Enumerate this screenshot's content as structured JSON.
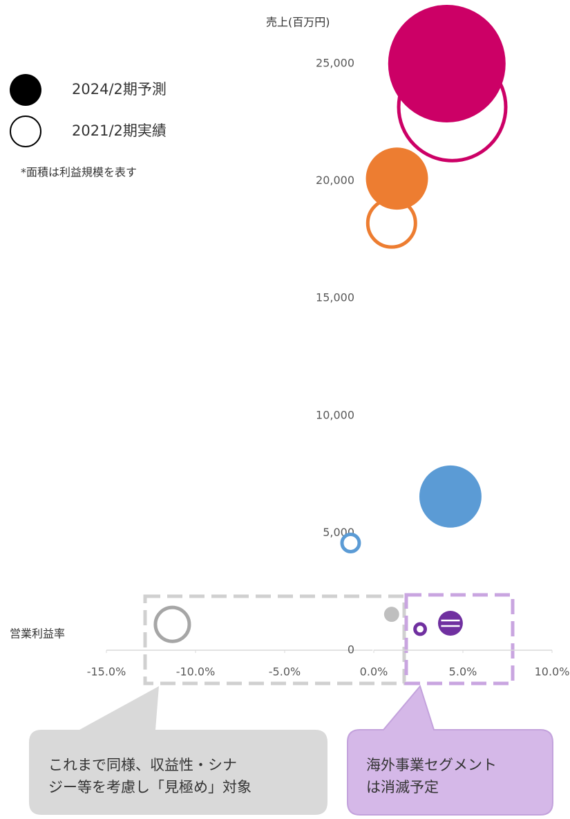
{
  "chart_data": {
    "type": "bubble",
    "y_label": "売上(百万円)",
    "x_label": "営業利益率",
    "note": "*面積は利益規模を表す",
    "xlim": [
      -15,
      10
    ],
    "xticks": [
      {
        "value": -15,
        "label": "-15.0%"
      },
      {
        "value": -10,
        "label": "-10.0%"
      },
      {
        "value": -5,
        "label": "-5.0%"
      },
      {
        "value": 0,
        "label": "0.0%"
      },
      {
        "value": 5,
        "label": "5.0%"
      },
      {
        "value": 10,
        "label": "10.0%"
      }
    ],
    "ylim": [
      0,
      25000
    ],
    "yticks": [
      0,
      {
        "value": 5000,
        "label": "5,000"
      },
      {
        "value": 10000,
        "label": "10,000"
      },
      {
        "value": 15000,
        "label": "15,000"
      },
      {
        "value": 20000,
        "label": "20,000"
      },
      {
        "value": 25000,
        "label": "25,000"
      }
    ],
    "series": [
      {
        "name": "2024/2期予測",
        "filled": true,
        "color": "#000000",
        "x": [
          4.1,
          1.3,
          4.3,
          1.0,
          4.3
        ],
        "values": [
          25000,
          20100,
          6550,
          1530,
          1150
        ],
        "sizes": [
          1029,
          288,
          288,
          17,
          46
        ],
        "colors": [
          "#cc0066",
          "#ed7d31",
          "#5b9bd5",
          "#bfbfbf",
          "#7030a0"
        ]
      },
      {
        "name": "2021/2期実績",
        "filled": false,
        "color": "#000000",
        "x": [
          4.4,
          1.0,
          -1.3,
          -11.3,
          2.6
        ],
        "values": [
          23150,
          18200,
          4570,
          1100,
          900
        ],
        "sizes": [
          911,
          195,
          32,
          104,
          14
        ],
        "colors": [
          "#cc0066",
          "#ed7d31",
          "#5b9bd5",
          "#a6a6a6",
          "#7030a0"
        ]
      }
    ],
    "callouts": [
      {
        "lines": [
          "これまで同様、収益性・シナ",
          "ジー等を考慮し「見極め」対象"
        ]
      },
      {
        "lines": [
          "海外事業セグメント",
          "は消滅予定"
        ]
      }
    ]
  }
}
